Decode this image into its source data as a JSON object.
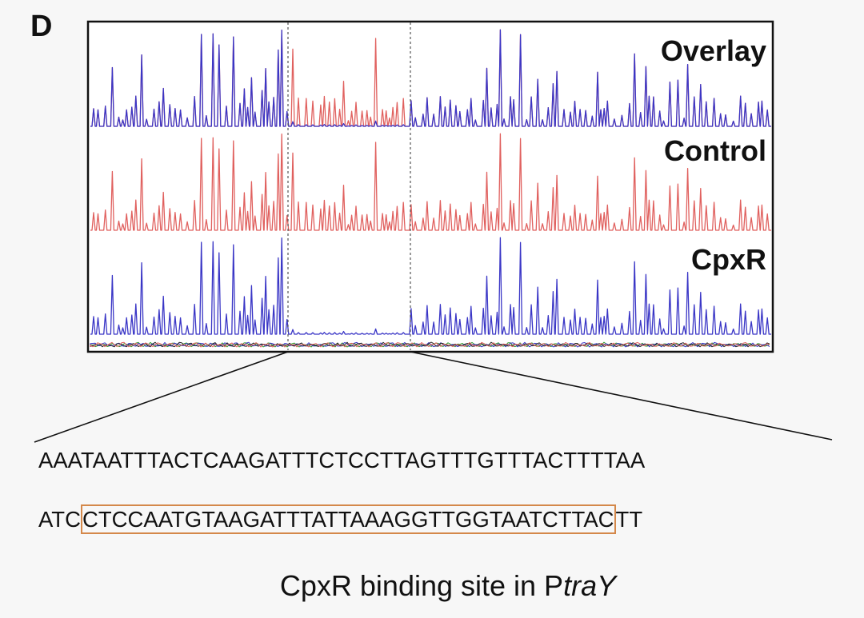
{
  "figure": {
    "panel_letter": "D",
    "tracks": [
      {
        "label": "Overlay",
        "key": "overlay"
      },
      {
        "label": "Control",
        "key": "control"
      },
      {
        "label": "CpxR",
        "key": "cpxr"
      }
    ],
    "colors": {
      "control_trace": "#e0605e",
      "cpxr_trace": "#3a36c6",
      "frame": "#111111",
      "guide_line": "#555555",
      "binding_box": "#d4884a",
      "base_a": "#2e9a2e",
      "base_c": "#3a36c6",
      "base_g": "#222222",
      "base_t": "#e0605e"
    },
    "sequence": {
      "line1": "AAATAATTTACTCAAGATTTCTCCTTAGTTTGTTTACTTTTAA",
      "line2_prefix": "ATC",
      "line2_boxed": "CTCCAATGTAAGATTTATTAAAGGTTGGTAATCTTAC",
      "line2_suffix": "TT"
    },
    "caption": {
      "prefix": "CpxR binding site in P",
      "italic": "traY"
    }
  }
}
